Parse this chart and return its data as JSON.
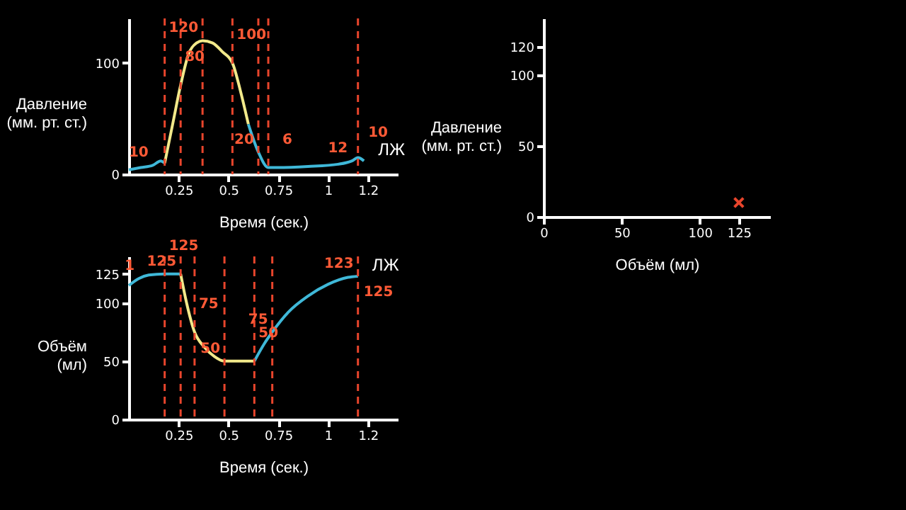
{
  "chart_data": [
    {
      "type": "line",
      "xlabel": "Время (сек.)",
      "ylabel": "Давление (мм. рт. ст.)",
      "xlim": [
        0,
        1.35
      ],
      "ylim": [
        0,
        140
      ],
      "xticks": [
        0.25,
        0.5,
        0.75,
        1,
        1.2
      ],
      "yticks": [
        0,
        100
      ],
      "series": [
        {
          "color": "#3fb8d8",
          "x": [
            0,
            0.06,
            0.12,
            0.16,
            0.18
          ],
          "values": [
            4,
            6,
            8,
            12,
            10
          ]
        },
        {
          "color": "#f2e98a",
          "x": [
            0.18,
            0.22,
            0.26,
            0.3,
            0.34,
            0.37,
            0.42,
            0.47,
            0.52,
            0.56,
            0.6
          ],
          "values": [
            10,
            45,
            80,
            108,
            118,
            120,
            118,
            110,
            100,
            75,
            45
          ]
        },
        {
          "color": "#3fb8d8",
          "x": [
            0.6,
            0.65,
            0.7,
            0.75,
            0.9,
            1.05,
            1.12,
            1.15,
            1.18
          ],
          "values": [
            45,
            20,
            6,
            6,
            7,
            9,
            12,
            15,
            12
          ]
        }
      ],
      "ref_lines": [
        {
          "axis": "x",
          "value": 0.18,
          "color": "#e8452c",
          "line_style": "dashed"
        },
        {
          "axis": "x",
          "value": 0.26,
          "color": "#e8452c",
          "line_style": "dashed"
        },
        {
          "axis": "x",
          "value": 0.37,
          "color": "#e8452c",
          "line_style": "dashed"
        },
        {
          "axis": "x",
          "value": 0.52,
          "color": "#e8452c",
          "line_style": "dashed"
        },
        {
          "axis": "x",
          "value": 0.65,
          "color": "#e8452c",
          "line_style": "dashed"
        },
        {
          "axis": "x",
          "value": 0.7,
          "color": "#e8452c",
          "line_style": "dashed"
        },
        {
          "axis": "x",
          "value": 1.15,
          "color": "#e8452c",
          "line_style": "dashed"
        }
      ],
      "annotations": [
        {
          "text": "10",
          "x": 0.12,
          "y": 8
        },
        {
          "text": "80",
          "x": 0.26,
          "y": 80
        },
        {
          "text": "120",
          "x": 0.37,
          "y": 120
        },
        {
          "text": "100",
          "x": 0.52,
          "y": 100
        },
        {
          "text": "20",
          "x": 0.65,
          "y": 20
        },
        {
          "text": "6",
          "x": 0.75,
          "y": 6
        },
        {
          "text": "12",
          "x": 1.12,
          "y": 12
        },
        {
          "text": "10",
          "x": 1.18,
          "y": 12
        },
        "ЛЖ"
      ]
    },
    {
      "type": "line",
      "xlabel": "Время (сек.)",
      "ylabel": "Объём (мл)",
      "xlim": [
        0,
        1.35
      ],
      "ylim": [
        0,
        140
      ],
      "xticks": [
        0.25,
        0.5,
        0.75,
        1,
        1.2
      ],
      "yticks": [
        0,
        50,
        100,
        125
      ],
      "series": [
        {
          "color": "#3fb8d8",
          "x": [
            0,
            0.05,
            0.1,
            0.18,
            0.26
          ],
          "values": [
            115,
            121,
            124,
            125,
            125
          ]
        },
        {
          "color": "#f2e98a",
          "x": [
            0.26,
            0.29,
            0.33,
            0.38,
            0.43,
            0.48,
            0.63
          ],
          "values": [
            125,
            100,
            75,
            62,
            54,
            50,
            50
          ]
        },
        {
          "color": "#3fb8d8",
          "x": [
            0.63,
            0.68,
            0.72,
            0.8,
            0.9,
            1.0,
            1.1,
            1.15
          ],
          "values": [
            50,
            65,
            75,
            92,
            106,
            116,
            122,
            123
          ]
        }
      ],
      "ref_lines": [
        {
          "axis": "x",
          "value": 0.18,
          "color": "#e8452c",
          "line_style": "dashed"
        },
        {
          "axis": "x",
          "value": 0.26,
          "color": "#e8452c",
          "line_style": "dashed"
        },
        {
          "axis": "x",
          "value": 0.33,
          "color": "#e8452c",
          "line_style": "dashed"
        },
        {
          "axis": "x",
          "value": 0.48,
          "color": "#e8452c",
          "line_style": "dashed"
        },
        {
          "axis": "x",
          "value": 0.63,
          "color": "#e8452c",
          "line_style": "dashed"
        },
        {
          "axis": "x",
          "value": 0.72,
          "color": "#e8452c",
          "line_style": "dashed"
        },
        {
          "axis": "x",
          "value": 1.15,
          "color": "#e8452c",
          "line_style": "dashed"
        }
      ],
      "annotations": [
        {
          "text": "1",
          "x": 0.05,
          "y": 121
        },
        {
          "text": "125",
          "x": 0.18,
          "y": 125
        },
        {
          "text": "125",
          "x": 0.26,
          "y": 125
        },
        {
          "text": "75",
          "x": 0.33,
          "y": 75
        },
        {
          "text": "50",
          "x": 0.48,
          "y": 50
        },
        {
          "text": "50",
          "x": 0.63,
          "y": 50
        },
        {
          "text": "75",
          "x": 0.72,
          "y": 75
        },
        {
          "text": "123",
          "x": 1.15,
          "y": 123
        },
        {
          "text": "125",
          "x": 1.15,
          "y": 123
        },
        "ЛЖ"
      ]
    },
    {
      "type": "scatter",
      "xlabel": "Объём (мл)",
      "ylabel": "Давление (мм. рт. ст.)",
      "xlim": [
        0,
        145
      ],
      "ylim": [
        0,
        140
      ],
      "xticks": [
        0,
        50,
        100,
        125
      ],
      "yticks": [
        0,
        50,
        100,
        120
      ],
      "marker": "cross",
      "series": [
        {
          "color": "#e8452c",
          "x": [
            125
          ],
          "values": [
            10
          ]
        }
      ]
    }
  ]
}
